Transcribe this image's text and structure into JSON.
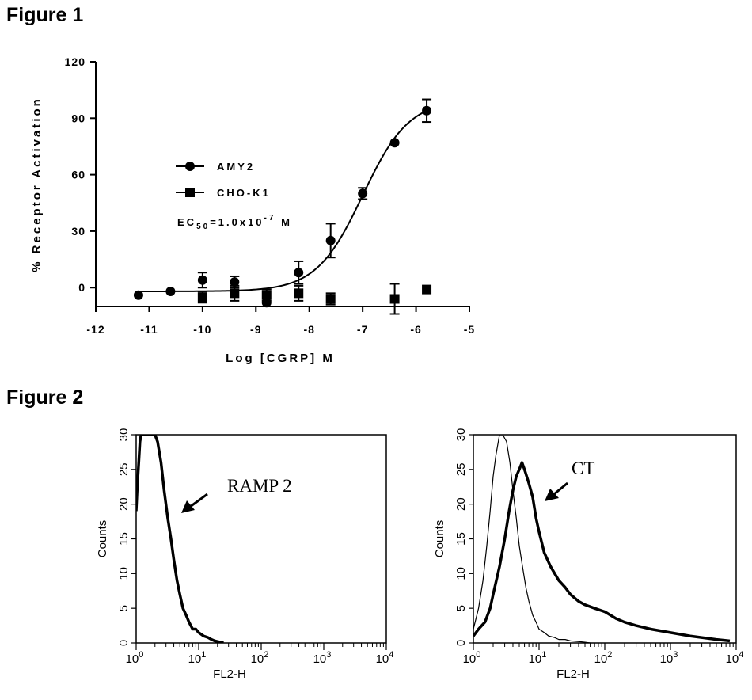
{
  "figure1": {
    "heading": "Figure 1",
    "chart_data": {
      "type": "scatter",
      "title": "",
      "xlabel": "Log [CGRP] M",
      "ylabel": "% Receptor Activation",
      "xlim": [
        -12,
        -5
      ],
      "ylim": [
        -10,
        120
      ],
      "x_ticks": [
        -12,
        -11,
        -10,
        -9,
        -8,
        -7,
        -6,
        -5
      ],
      "y_ticks": [
        0,
        30,
        60,
        90,
        120
      ],
      "grid": false,
      "legend_position": "center-left",
      "annotation_parts": {
        "prefix": "EC",
        "sub": "50",
        "middle": "=1.0x10",
        "sup": "-7",
        "suffix": " M"
      },
      "series": [
        {
          "name": "AMY2",
          "marker": "circle",
          "x": [
            -11.2,
            -10.6,
            -10.0,
            -9.4,
            -8.8,
            -8.2,
            -7.6,
            -7.0,
            -6.4,
            -5.8
          ],
          "y": [
            -4,
            -2,
            4,
            3,
            -8,
            8,
            25,
            50,
            77,
            94
          ],
          "err": [
            0,
            0,
            4,
            3,
            0,
            6,
            9,
            3,
            0,
            6
          ],
          "fit": {
            "model": "four-parameter logistic",
            "bottom": -2,
            "top": 100,
            "logEC50": -7.0,
            "hill": 1.0
          }
        },
        {
          "name": "CHO-K1",
          "marker": "square",
          "x": [
            -10.0,
            -9.4,
            -8.8,
            -8.2,
            -7.6,
            -6.4,
            -5.8
          ],
          "y": [
            -5,
            -3,
            -4,
            -3,
            -6,
            -6,
            -1
          ],
          "err": [
            3,
            4,
            3,
            4,
            3,
            8,
            0
          ]
        }
      ]
    }
  },
  "figure2": {
    "heading": "Figure 2",
    "chart_data": [
      {
        "type": "area",
        "title": "",
        "xlabel": "FL2-H",
        "ylabel": "Counts",
        "x_scale": "log",
        "xlim": [
          1,
          10000
        ],
        "ylim": [
          0,
          30
        ],
        "x_tick_base": "10",
        "x_tick_exponents": [
          "0",
          "1",
          "2",
          "3",
          "4"
        ],
        "y_ticks": [
          "0",
          "5",
          "10",
          "15",
          "20",
          "25",
          "30"
        ],
        "annotation": "RAMP 2",
        "series": [
          {
            "style": "thick",
            "x": [
              1.0,
              1.05,
              1.1,
              1.15,
              1.2,
              1.3,
              1.4,
              1.6,
              1.8,
              2.0,
              2.2,
              2.5,
              2.8,
              3.2,
              3.6,
              4.0,
              4.5,
              5.0,
              5.6,
              6.3,
              7.0,
              8.0,
              9.0,
              10.0,
              12.0,
              14.0,
              16.0,
              18.0,
              20.0,
              25.0
            ],
            "y": [
              19,
              23,
              26,
              29,
              30,
              30,
              30,
              30,
              30,
              30,
              29,
              26,
              22,
              18,
              15,
              12,
              9,
              7,
              5,
              4,
              3,
              2,
              2,
              1.5,
              1,
              0.8,
              0.5,
              0.3,
              0.2,
              0
            ]
          }
        ]
      },
      {
        "type": "area",
        "title": "",
        "xlabel": "FL2-H",
        "ylabel": "Counts",
        "x_scale": "log",
        "xlim": [
          1,
          10000
        ],
        "ylim": [
          0,
          30
        ],
        "x_tick_base": "10",
        "x_tick_exponents": [
          "0",
          "1",
          "2",
          "3",
          "4"
        ],
        "y_ticks": [
          "0",
          "5",
          "10",
          "15",
          "20",
          "25",
          "30"
        ],
        "annotation": "CT",
        "series": [
          {
            "style": "thin",
            "x": [
              1.0,
              1.2,
              1.4,
              1.6,
              1.8,
              2.0,
              2.2,
              2.5,
              2.8,
              3.2,
              3.6,
              4.0,
              4.5,
              5.0,
              5.6,
              6.3,
              7.0,
              8.0,
              9.0,
              10.0,
              12.0,
              14.0,
              17.0,
              20.0,
              25.0,
              30.0,
              40.0,
              50.0,
              60.0
            ],
            "y": [
              2,
              5,
              9,
              14,
              19,
              24,
              27,
              30,
              30,
              29,
              26,
              22,
              18,
              14,
              11,
              8,
              6,
              4,
              3,
              2,
              1.5,
              1,
              0.8,
              0.5,
              0.5,
              0.3,
              0.2,
              0.1,
              0
            ]
          },
          {
            "style": "thick",
            "x": [
              1.0,
              1.2,
              1.5,
              1.8,
              2.0,
              2.5,
              3.0,
              3.5,
              4.0,
              4.5,
              5.0,
              5.5,
              6.0,
              7.0,
              8.0,
              9.0,
              10.0,
              12.0,
              15.0,
              20.0,
              25.0,
              30.0,
              40.0,
              50.0,
              70.0,
              100.0,
              150.0,
              200.0,
              300.0,
              500.0,
              1000.0,
              2000.0,
              5000.0,
              8000.0
            ],
            "y": [
              1,
              2,
              3,
              5,
              7,
              11,
              15,
              19,
              22,
              24,
              25,
              26,
              25,
              23,
              21,
              18,
              16,
              13,
              11,
              9,
              8,
              7,
              6,
              5.5,
              5,
              4.5,
              3.5,
              3,
              2.5,
              2,
              1.5,
              1,
              0.5,
              0.3
            ]
          }
        ]
      }
    ]
  }
}
